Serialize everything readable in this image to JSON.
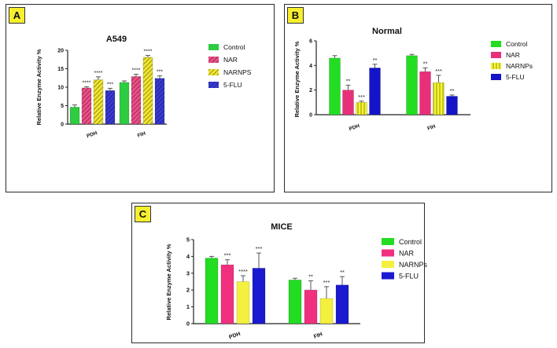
{
  "chart_data": [
    {
      "panel_label": "A",
      "type": "bar",
      "title": "A549",
      "ylabel": "Relative Enzyme Activity %",
      "xlabel": "",
      "ylim": [
        0,
        20
      ],
      "yticks": [
        0,
        5,
        10,
        15,
        20
      ],
      "categories": [
        "PDH",
        "FIH"
      ],
      "series": [
        {
          "name": "Control",
          "values": [
            4.6,
            11.3
          ],
          "errors": [
            0.6,
            0.4
          ],
          "sig": [
            "",
            ""
          ],
          "color": "#2ecc40",
          "pattern": "solid"
        },
        {
          "name": "NAR",
          "values": [
            9.8,
            12.9
          ],
          "errors": [
            0.3,
            0.6
          ],
          "sig": [
            "****",
            "****"
          ],
          "color": "#f0508a",
          "pattern": "hatch"
        },
        {
          "name": "NARNPS",
          "values": [
            12.0,
            18.1
          ],
          "errors": [
            0.8,
            0.5
          ],
          "sig": [
            "****",
            "****"
          ],
          "color": "#f2e830",
          "pattern": "hatch"
        },
        {
          "name": "5-FLU",
          "values": [
            9.1,
            12.4
          ],
          "errors": [
            0.6,
            0.7
          ],
          "sig": [
            "***",
            "***"
          ],
          "color": "#3a3ad8",
          "pattern": "hatch"
        }
      ]
    },
    {
      "panel_label": "B",
      "type": "bar",
      "title": "Normal",
      "ylabel": "Relative Enzyme Activity %",
      "xlabel": "",
      "ylim": [
        0,
        6
      ],
      "yticks": [
        0,
        2,
        4,
        6
      ],
      "categories": [
        "PDH",
        "FIH"
      ],
      "series": [
        {
          "name": "Control",
          "values": [
            4.6,
            4.8
          ],
          "errors": [
            0.2,
            0.1
          ],
          "sig": [
            "",
            ""
          ],
          "color": "#22dd22",
          "pattern": "solid"
        },
        {
          "name": "NAR",
          "values": [
            2.0,
            3.5
          ],
          "errors": [
            0.4,
            0.3
          ],
          "sig": [
            "**",
            "**"
          ],
          "color": "#e8307a",
          "pattern": "solid"
        },
        {
          "name": "NARNPs",
          "values": [
            1.0,
            2.6
          ],
          "errors": [
            0.1,
            0.6
          ],
          "sig": [
            "***",
            "***"
          ],
          "color": "#f4f43a",
          "pattern": "vlines"
        },
        {
          "name": "5-FLU",
          "values": [
            3.8,
            1.5
          ],
          "errors": [
            0.3,
            0.1
          ],
          "sig": [
            "**",
            "**"
          ],
          "color": "#1414c8",
          "pattern": "solid"
        }
      ]
    },
    {
      "panel_label": "C",
      "type": "bar",
      "title": "MICE",
      "ylabel": "Relative Enzyme Activity %",
      "xlabel": "",
      "ylim": [
        0,
        5
      ],
      "yticks": [
        0,
        1,
        2,
        3,
        4,
        5
      ],
      "categories": [
        "PDH",
        "FIH"
      ],
      "series": [
        {
          "name": "Control",
          "values": [
            3.9,
            2.6
          ],
          "errors": [
            0.1,
            0.1
          ],
          "sig": [
            "",
            ""
          ],
          "color": "#22dd22",
          "pattern": "solid"
        },
        {
          "name": "NAR",
          "values": [
            3.5,
            2.0
          ],
          "errors": [
            0.3,
            0.55
          ],
          "sig": [
            "***",
            "**"
          ],
          "color": "#f0307e",
          "pattern": "solid"
        },
        {
          "name": "NARNPs",
          "values": [
            2.5,
            1.5
          ],
          "errors": [
            0.35,
            0.7
          ],
          "sig": [
            "****",
            "***"
          ],
          "color": "#f4f040",
          "pattern": "solid"
        },
        {
          "name": "5-FLU",
          "values": [
            3.3,
            2.3
          ],
          "errors": [
            0.9,
            0.5
          ],
          "sig": [
            "***",
            "**"
          ],
          "color": "#1a1ad0",
          "pattern": "solid"
        }
      ]
    }
  ]
}
